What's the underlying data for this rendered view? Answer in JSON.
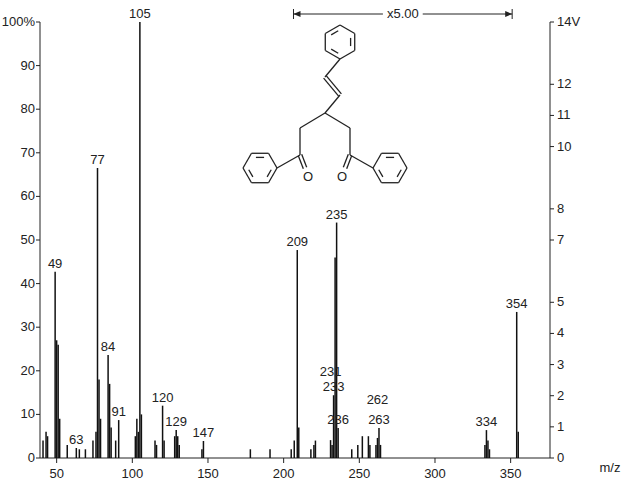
{
  "chart_data": {
    "type": "stem",
    "color": "#111111",
    "grid": false,
    "x_label": "m/z",
    "xlim": [
      39,
      376
    ],
    "xticks": [
      50,
      100,
      150,
      200,
      250,
      300,
      350
    ],
    "ylim": [
      0,
      100
    ],
    "yticks": [
      0,
      10,
      20,
      30,
      40,
      50,
      60,
      70,
      80,
      90,
      {
        "value": 100,
        "label": "100%"
      }
    ],
    "y2lim": [
      0,
      14
    ],
    "y2ticks": [
      0,
      1,
      2,
      3,
      4,
      5,
      7,
      8,
      10,
      11,
      12,
      {
        "value": 14,
        "label": "14V"
      }
    ],
    "x": [
      41,
      43,
      44,
      49,
      50,
      51,
      52,
      57,
      63,
      65,
      69,
      74,
      76,
      77,
      78,
      79,
      84,
      85,
      86,
      89,
      91,
      102,
      103,
      104,
      105,
      106,
      115,
      116,
      120,
      121,
      128,
      129,
      130,
      131,
      146,
      147,
      178,
      191,
      205,
      207,
      209,
      210,
      218,
      220,
      221,
      231,
      232,
      233,
      234,
      235,
      236,
      245,
      249,
      252,
      256,
      257,
      261,
      262,
      263,
      264,
      333,
      334,
      335,
      336,
      354,
      355
    ],
    "values": [
      4,
      6,
      5,
      42.7,
      27,
      26,
      9,
      3,
      2.3,
      2,
      2,
      4,
      6,
      66.5,
      18,
      9,
      23.6,
      17,
      7,
      4,
      8.7,
      5,
      9,
      6,
      100,
      10,
      4,
      3,
      12,
      4,
      5,
      6.4,
      5,
      3,
      2,
      3.9,
      2,
      2,
      2,
      4,
      47.7,
      7,
      2,
      3,
      4,
      4.1,
      3,
      14.4,
      46,
      54,
      6.9,
      2,
      3,
      5,
      5,
      3,
      3,
      4.6,
      6.9,
      3,
      3,
      6.4,
      4,
      2,
      33.5,
      6
    ],
    "peak_labels": [
      105,
      77,
      49,
      84,
      91,
      63,
      120,
      129,
      147,
      209,
      235,
      233,
      236,
      231,
      263,
      262,
      334,
      354
    ],
    "annotations": [
      {
        "text": "x5.00",
        "xrange": [
          206.5,
          351
        ]
      }
    ]
  },
  "structure": {
    "atoms": [
      "O",
      "O"
    ]
  }
}
